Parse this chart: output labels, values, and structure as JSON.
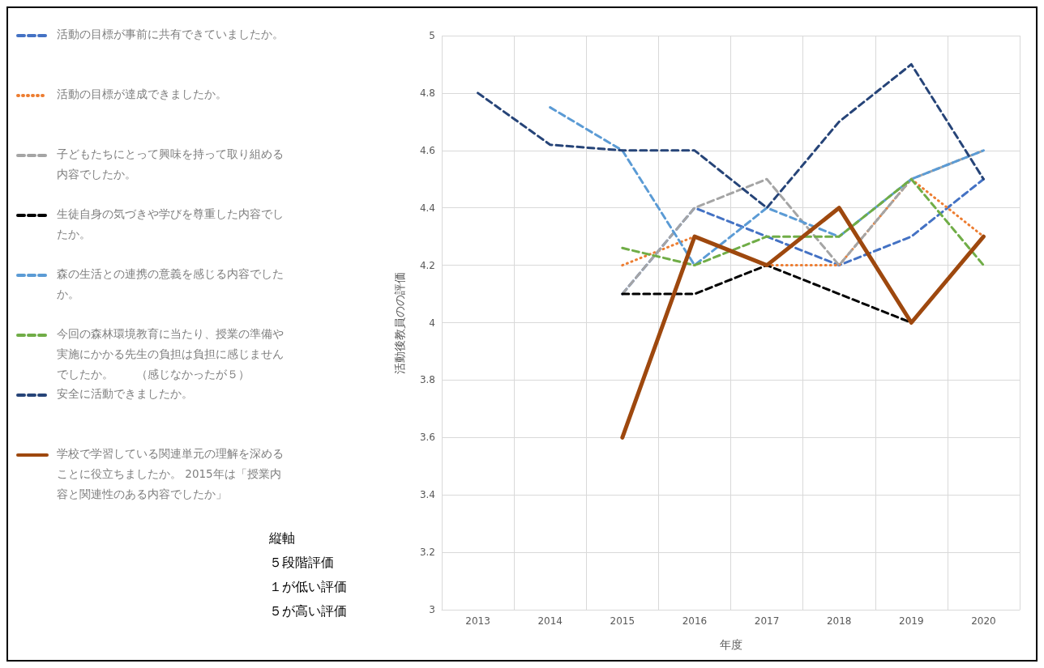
{
  "chart_data": {
    "type": "line",
    "xlabel": "年度",
    "ylabel": "活動後教員のの評価",
    "categories": [
      "2013",
      "2014",
      "2015",
      "2016",
      "2017",
      "2018",
      "2019",
      "2020"
    ],
    "ylim": [
      3,
      5
    ],
    "yticks": [
      3,
      3.2,
      3.4,
      3.6,
      3.8,
      4,
      4.2,
      4.4,
      4.6,
      4.8,
      5
    ],
    "grid": true,
    "legend": "left",
    "marker": "none",
    "series": [
      {
        "name": "活動の目標が事前に共有できていましたか。",
        "color": "#4472c4",
        "line_style": "dashed",
        "values": [
          null,
          null,
          4.1,
          4.4,
          4.3,
          4.2,
          4.3,
          4.5
        ]
      },
      {
        "name": "活動の目標が達成できましたか。",
        "color": "#ed7d31",
        "line_style": "dotted",
        "values": [
          null,
          null,
          4.2,
          4.3,
          4.2,
          4.2,
          4.5,
          4.3
        ]
      },
      {
        "name": "子どもたちにとって興味を持って取り組める内容でしたか。",
        "color": "#a5a5a5",
        "line_style": "dashed",
        "values": [
          null,
          null,
          4.1,
          4.4,
          4.5,
          4.2,
          4.5,
          4.6
        ]
      },
      {
        "name": "生徒自身の気づきや学びを尊重した内容でしたか。",
        "color": "#000000",
        "line_style": "dashed",
        "values": [
          null,
          null,
          4.1,
          4.1,
          4.2,
          4.1,
          4.0,
          null
        ]
      },
      {
        "name": "森の生活との連携の意義を感じる内容でしたか。",
        "color": "#5b9bd5",
        "line_style": "dashed",
        "values": [
          null,
          4.75,
          4.6,
          4.2,
          4.4,
          4.3,
          4.5,
          4.6
        ]
      },
      {
        "name": "今回の森林環境教育に当たり、授業の準備や実施にかかる先生の負担は負担に感じませんでしたか。　　（感じなかったが５）",
        "color": "#70ad47",
        "line_style": "dashed",
        "values": [
          null,
          null,
          4.26,
          4.2,
          4.3,
          4.3,
          4.5,
          4.2
        ]
      },
      {
        "name": "安全に活動できましたか。",
        "color": "#264478",
        "line_style": "dashed",
        "values": [
          4.8,
          4.62,
          4.6,
          4.6,
          4.4,
          4.7,
          4.9,
          4.5
        ]
      },
      {
        "name": "学校で学習している関連単元の理解を深めることに役立ちましたか。 2015年は「授業内容と関連性のある内容でしたか」",
        "color": "#9e480e",
        "line_style": "solid",
        "values": [
          null,
          null,
          3.6,
          4.3,
          4.2,
          4.4,
          4.0,
          4.3
        ]
      }
    ],
    "annotations": [
      "縦軸",
      "５段階評価",
      "１が低い評価",
      "５が高い評価"
    ]
  }
}
